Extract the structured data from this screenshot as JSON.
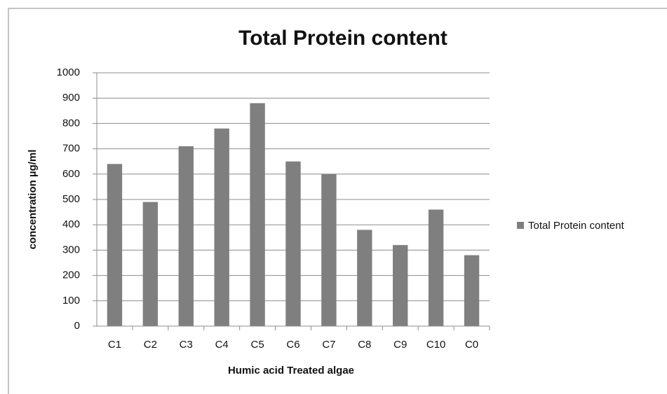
{
  "chart_data": {
    "type": "bar",
    "title": "Total Protein content",
    "x_label": "Humic acid Treated algae",
    "y_label": "concentration µg/ml",
    "categories": [
      "C1",
      "C2",
      "C3",
      "C4",
      "C5",
      "C6",
      "C7",
      "C8",
      "C9",
      "C10",
      "C0"
    ],
    "series": [
      {
        "name": "Total Protein content",
        "color": "#7f7f7f",
        "values": [
          640,
          490,
          710,
          780,
          880,
          650,
          600,
          380,
          320,
          460,
          280
        ]
      }
    ],
    "ylim": [
      0,
      1000
    ],
    "yticks": [
      0,
      100,
      200,
      300,
      400,
      500,
      600,
      700,
      800,
      900,
      1000
    ],
    "grid": true,
    "legend": "right"
  }
}
